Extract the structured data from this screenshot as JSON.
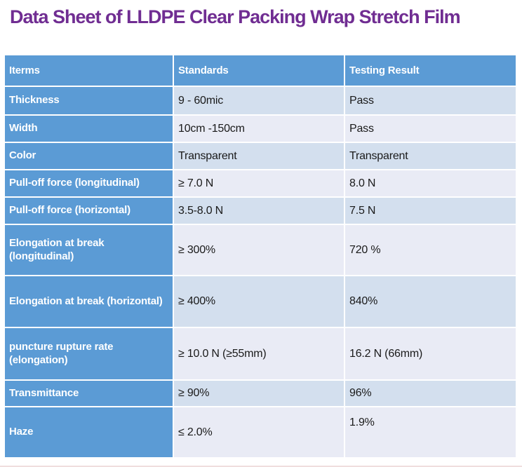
{
  "title": "Data Sheet of LLDPE Clear Packing Wrap Stretch Film",
  "colors": {
    "title_purple": "#702d92",
    "header_blue": "#5b9bd5",
    "row_odd_bg": "#d3dfee",
    "row_even_bg": "#e9ebf5",
    "header_text": "#ffffff"
  },
  "table": {
    "headers": [
      "Iterms",
      "Standards",
      "Testing Result"
    ],
    "rows": [
      {
        "item": "Thickness",
        "standard": "9 - 60mic",
        "result": "Pass"
      },
      {
        "item": "Width",
        "standard": "10cm -150cm",
        "result": "Pass"
      },
      {
        "item": "Color",
        "standard": "Transparent",
        "result": "Transparent"
      },
      {
        "item": "Pull-off force (longitudinal)",
        "standard": "≥ 7.0 N",
        "result": "8.0 N"
      },
      {
        "item": "Pull-off force (horizontal)",
        "standard": "3.5-8.0 N",
        "result": "7.5 N"
      },
      {
        "item": "Elongation at break (longitudinal)",
        "standard": "≥ 300%",
        "result": "720 %"
      },
      {
        "item": "Elongation at break (horizontal)",
        "standard": "≥ 400%",
        "result": "840%"
      },
      {
        "item": "puncture rupture rate (elongation)",
        "standard": "≥ 10.0 N (≥55mm)",
        "result": "16.2 N (66mm)"
      },
      {
        "item": "Transmittance",
        "standard": "≥ 90%",
        "result": "96%"
      },
      {
        "item": "Haze",
        "standard": "≤ 2.0%",
        "result": "1.9%"
      }
    ]
  }
}
